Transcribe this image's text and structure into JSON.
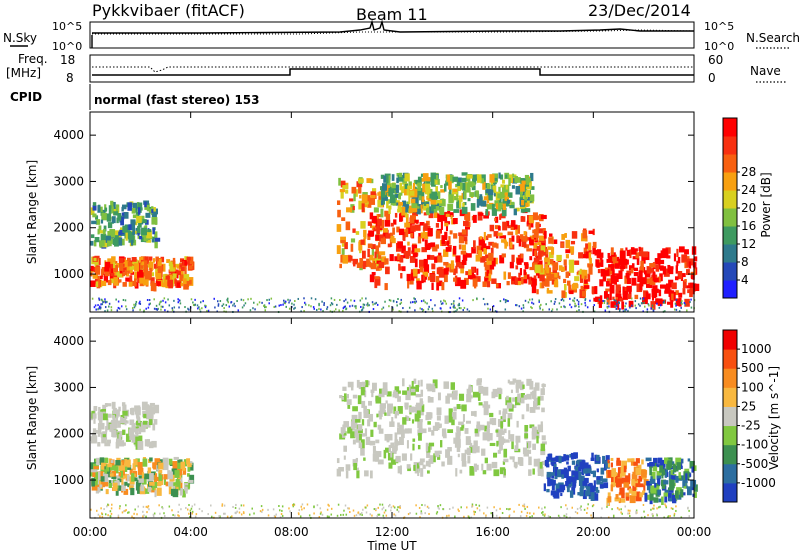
{
  "header": {
    "title": "Pykkvibaer (fitACF)",
    "beam": "Beam 11",
    "date": "23/Dec/2014"
  },
  "top_panels": {
    "nsky_label": "N.Sky",
    "nsky_ticks": [
      "10^5",
      "10^0"
    ],
    "nsearch_label": "N.Search",
    "nsearch_right_ticks": [
      "10^5",
      "10^0"
    ],
    "freq_label_1": "Freq.",
    "freq_label_2": "[MHz]",
    "freq_ticks": [
      "18",
      "8"
    ],
    "nave_label": "Nave",
    "nave_ticks": [
      "60",
      "0"
    ],
    "cpid_label": "CPID",
    "cpid_text": "normal (fast stereo) 153"
  },
  "chart_data": [
    {
      "type": "heatmap",
      "name": "power-panel",
      "ylabel": "Slant Range [km]",
      "xlabel": "",
      "yticks": [
        "1000",
        "2000",
        "3000",
        "4000"
      ],
      "ylim": [
        180,
        4500
      ],
      "xlim_hours": [
        0,
        24
      ],
      "colorbar": {
        "label": "Power [dB]",
        "ticks": [
          "4",
          "8",
          "12",
          "16",
          "20",
          "24",
          "28"
        ],
        "colors": [
          "#2020ff",
          "#2448b8",
          "#2e7a8c",
          "#3e9a60",
          "#80c040",
          "#d8d020",
          "#f8a010",
          "#f86010",
          "#f83010",
          "#ff0000"
        ]
      },
      "regions": [
        {
          "t0": 0.0,
          "t1": 4.0,
          "r0": 800,
          "r1": 1400,
          "level": 7
        },
        {
          "t0": 0.0,
          "t1": 2.6,
          "r0": 1700,
          "r1": 2600,
          "level": 3
        },
        {
          "t0": 9.8,
          "t1": 11.5,
          "r0": 1200,
          "r1": 3100,
          "level": 6
        },
        {
          "t0": 11.0,
          "t1": 18.0,
          "r0": 800,
          "r1": 2400,
          "level": 8
        },
        {
          "t0": 11.5,
          "t1": 17.5,
          "r0": 2400,
          "r1": 3200,
          "level": 4
        },
        {
          "t0": 17.5,
          "t1": 20.0,
          "r0": 600,
          "r1": 2000,
          "level": 7
        },
        {
          "t0": 20.0,
          "t1": 24.0,
          "r0": 400,
          "r1": 1600,
          "level": 9
        }
      ]
    },
    {
      "type": "heatmap",
      "name": "velocity-panel",
      "ylabel": "Slant Range [km]",
      "xlabel": "Time UT",
      "yticks": [
        "1000",
        "2000",
        "3000",
        "4000"
      ],
      "xticks": [
        "00:00",
        "04:00",
        "08:00",
        "12:00",
        "16:00",
        "20:00",
        "00:00"
      ],
      "ylim": [
        180,
        4500
      ],
      "xlim_hours": [
        0,
        24
      ],
      "colorbar": {
        "label": "Velocity [m s^-1]",
        "ticks": [
          "1000",
          "500",
          "100",
          "25",
          "-25",
          "-100",
          "-500",
          "-1000"
        ],
        "colors": [
          "#2040c0",
          "#2c6ea0",
          "#3c9050",
          "#80c840",
          "#c8c8c0",
          "#f8b840",
          "#f88c20",
          "#f85010",
          "#f00000"
        ]
      },
      "regions": [
        {
          "t0": 0.0,
          "t1": 4.0,
          "r0": 800,
          "r1": 1500,
          "level": "mixed-green-orange"
        },
        {
          "t0": 0.0,
          "t1": 2.6,
          "r0": 1800,
          "r1": 2700,
          "level": "grey"
        },
        {
          "t0": 9.8,
          "t1": 18.0,
          "r0": 1200,
          "r1": 3200,
          "level": "grey"
        },
        {
          "t0": 18.0,
          "t1": 20.5,
          "r0": 700,
          "r1": 1600,
          "level": "blue"
        },
        {
          "t0": 20.5,
          "t1": 22.0,
          "r0": 600,
          "r1": 1500,
          "level": "orange"
        },
        {
          "t0": 22.0,
          "t1": 24.0,
          "r0": 600,
          "r1": 1500,
          "level": "green-blue"
        }
      ]
    }
  ]
}
